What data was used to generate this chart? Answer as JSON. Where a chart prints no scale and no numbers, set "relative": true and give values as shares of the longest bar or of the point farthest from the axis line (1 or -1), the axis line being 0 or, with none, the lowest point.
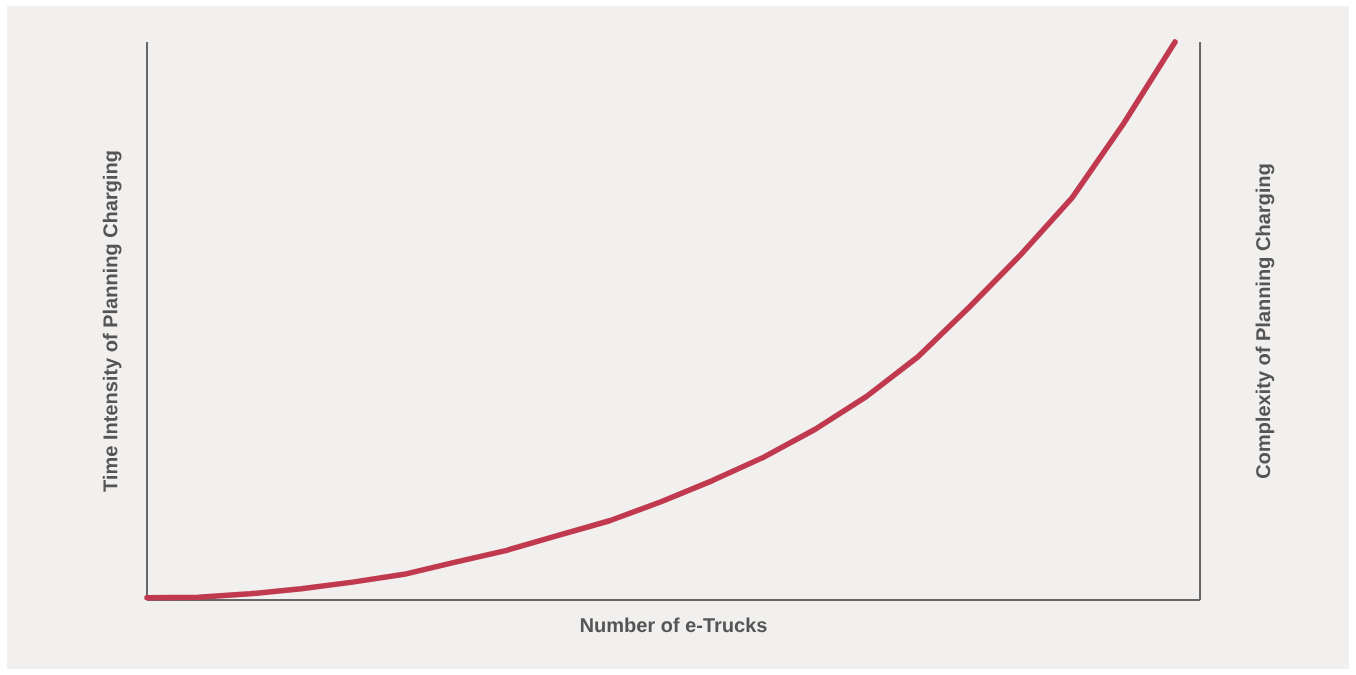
{
  "chart_data": {
    "type": "line",
    "relative": true,
    "tick_labels": false,
    "xlabel": "Number of e-Trucks",
    "ylabel": "Time Intensity of Planning Charging",
    "y2label": "Complexity of Planning Charging",
    "color": "#c0394f",
    "categories": [
      null,
      null,
      null,
      null,
      null,
      null,
      null,
      null,
      null,
      null,
      null,
      null,
      null,
      null,
      null,
      null,
      null,
      null,
      null,
      null,
      null
    ],
    "values": [
      0.004,
      0.005,
      0.011,
      0.02,
      0.032,
      0.046,
      0.068,
      0.089,
      0.116,
      0.142,
      0.176,
      0.214,
      0.256,
      0.306,
      0.365,
      0.436,
      0.525,
      0.619,
      0.721,
      0.854,
      1.0
    ]
  }
}
